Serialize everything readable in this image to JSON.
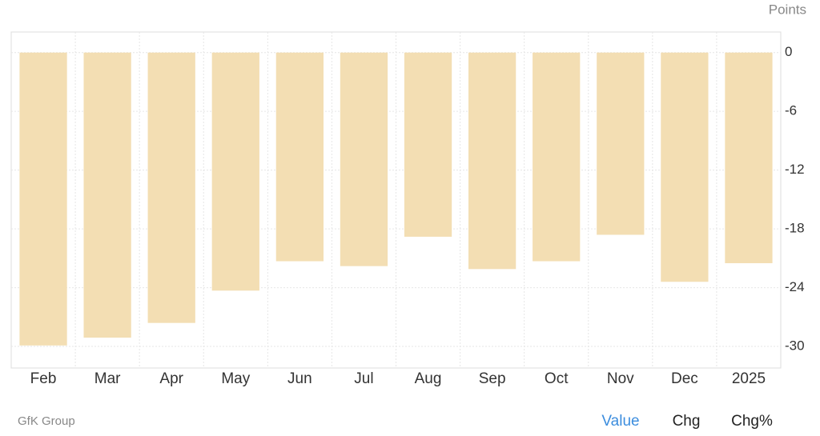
{
  "chart_data": {
    "type": "bar",
    "y_label": "Points",
    "source": "GfK Group",
    "categories": [
      "Feb",
      "Mar",
      "Apr",
      "May",
      "Jun",
      "Jul",
      "Aug",
      "Sep",
      "Oct",
      "Nov",
      "Dec",
      "2025"
    ],
    "values": [
      -29.9,
      -29.1,
      -27.6,
      -24.3,
      -21.3,
      -21.8,
      -18.8,
      -22.1,
      -21.3,
      -18.6,
      -23.4,
      -21.5
    ],
    "color": "#f3deb3",
    "ylim": [
      -32.2,
      2.1
    ],
    "yticks": [
      0,
      -6,
      -12,
      -18,
      -24,
      -30
    ],
    "grid": true
  },
  "tabs": [
    "Value",
    "Chg",
    "Chg%"
  ]
}
